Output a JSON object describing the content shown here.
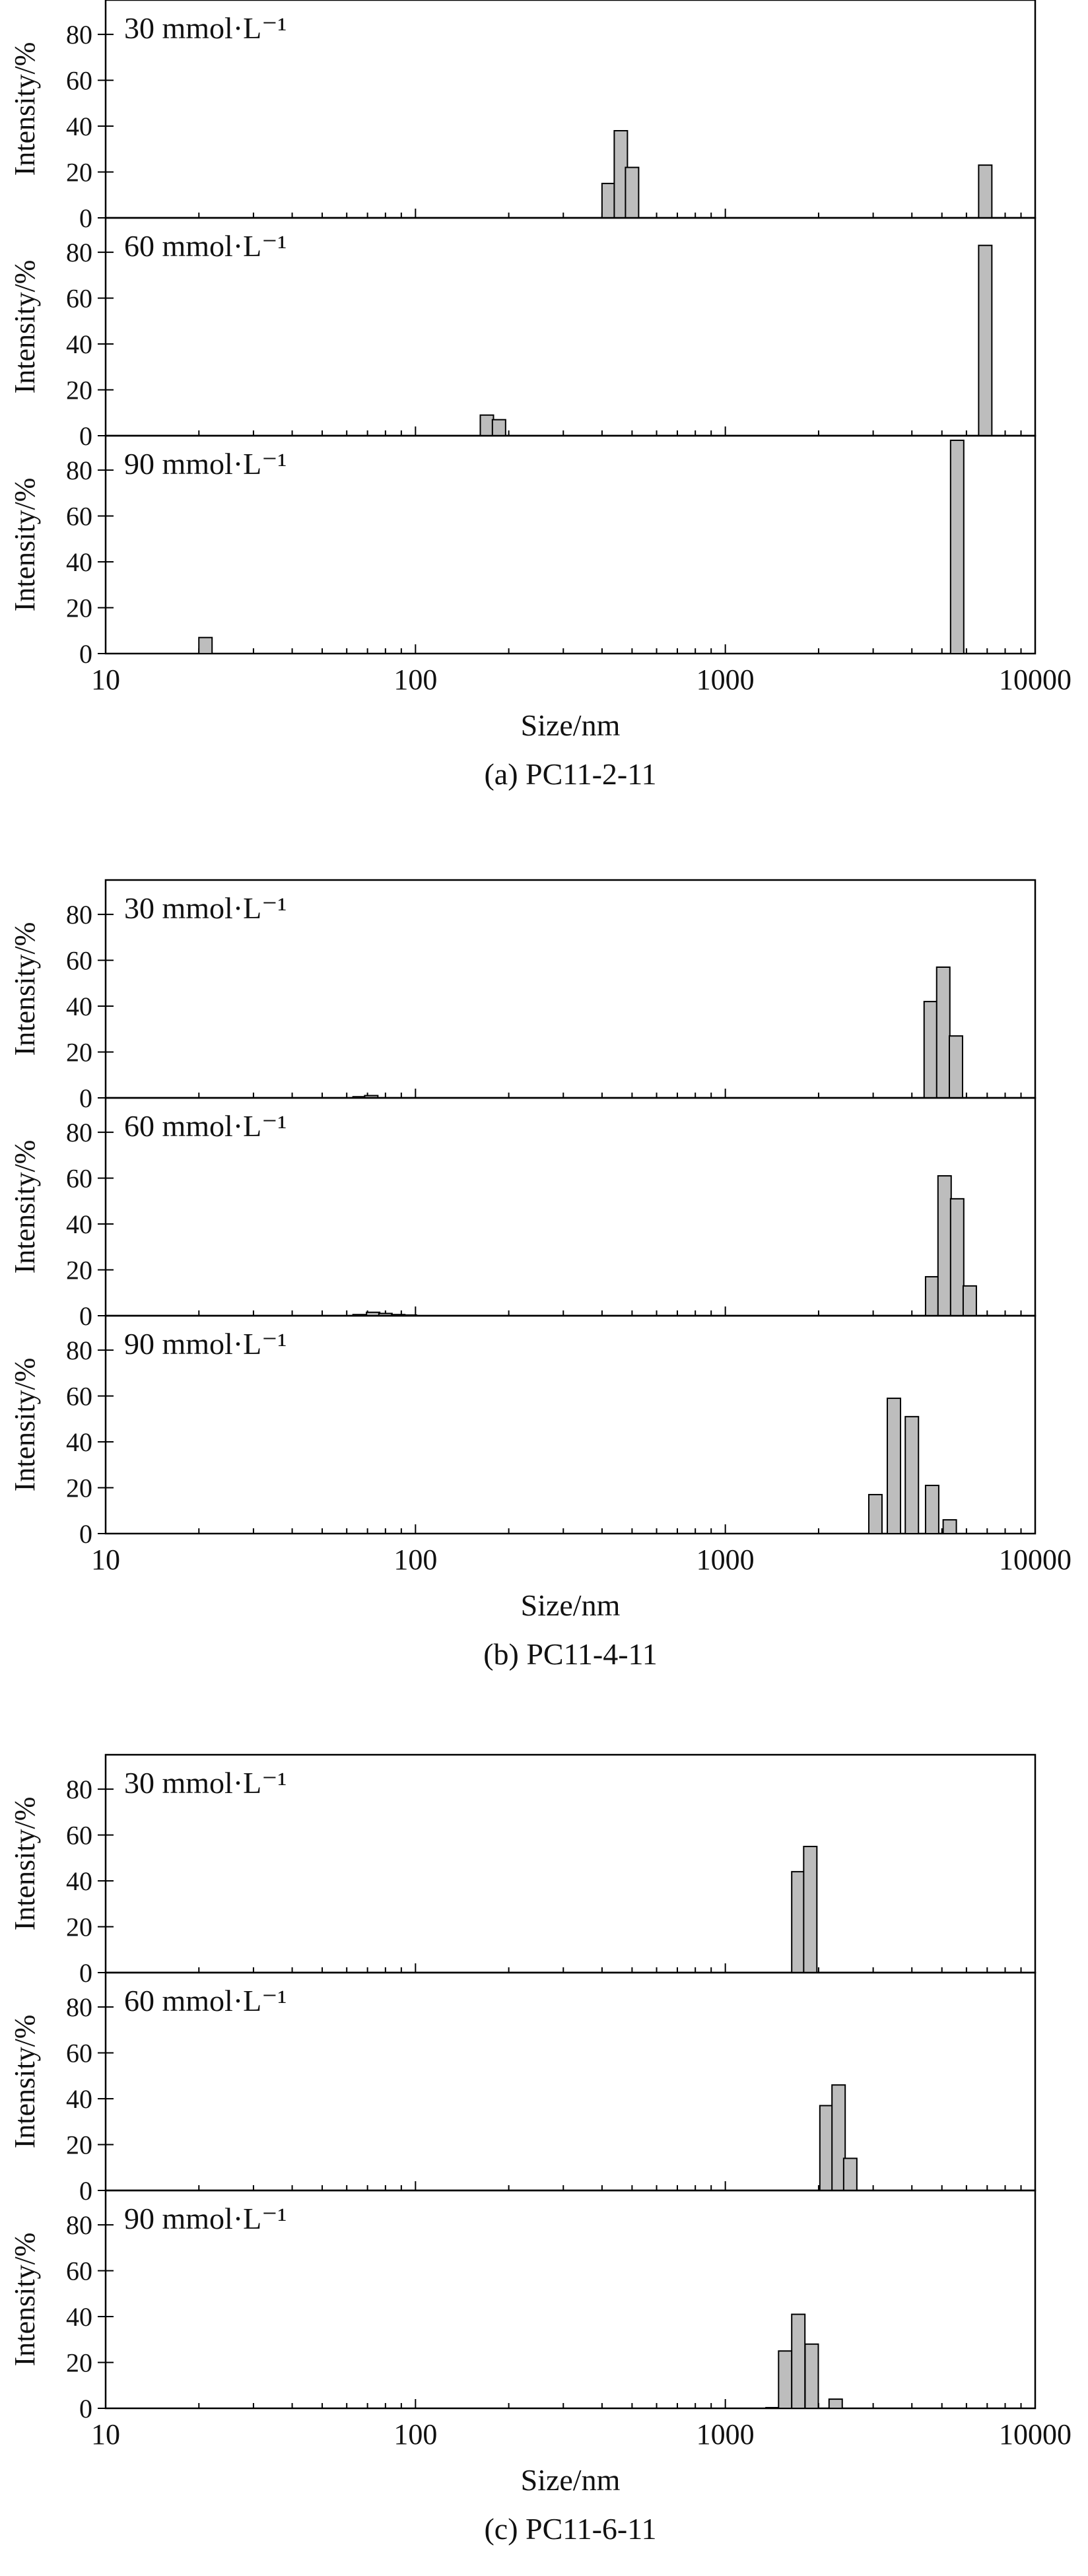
{
  "colors": {
    "bar_fill": "#bdbdbd",
    "bar_stroke": "#000000",
    "axis": "#000000",
    "background": "#ffffff"
  },
  "chart_data": [
    {
      "type": "bar",
      "caption": "(a) PC11-2-11",
      "xlabel": "Size/nm",
      "ylabel": "Intensity/%",
      "xscale": "log",
      "xlim": [
        10,
        10000
      ],
      "x_ticks": [
        "10",
        "100",
        "1000",
        "10000"
      ],
      "ylim": [
        0,
        95
      ],
      "y_ticks": [
        "0",
        "20",
        "40",
        "60",
        "80"
      ],
      "panels": [
        {
          "label": "30 mmol·L⁻¹",
          "bars": [
            {
              "x": 420,
              "y": 15
            },
            {
              "x": 460,
              "y": 38
            },
            {
              "x": 500,
              "y": 22
            },
            {
              "x": 6900,
              "y": 23
            }
          ]
        },
        {
          "label": "60 mmol·L⁻¹",
          "bars": [
            {
              "x": 170,
              "y": 9
            },
            {
              "x": 186,
              "y": 7
            },
            {
              "x": 6900,
              "y": 83
            }
          ]
        },
        {
          "label": "90 mmol·L⁻¹",
          "bars": [
            {
              "x": 21,
              "y": 7
            },
            {
              "x": 5600,
              "y": 93
            }
          ]
        }
      ]
    },
    {
      "type": "bar",
      "caption": "(b) PC11-4-11",
      "xlabel": "Size/nm",
      "ylabel": "Intensity/%",
      "xscale": "log",
      "xlim": [
        10,
        10000
      ],
      "x_ticks": [
        "10",
        "100",
        "1000",
        "10000"
      ],
      "ylim": [
        0,
        95
      ],
      "y_ticks": [
        "0",
        "20",
        "40",
        "60",
        "80"
      ],
      "panels": [
        {
          "label": "30 mmol·L⁻¹",
          "bars": [
            {
              "x": 66,
              "y": 0.5
            },
            {
              "x": 72,
              "y": 1
            },
            {
              "x": 4600,
              "y": 42
            },
            {
              "x": 5050,
              "y": 57
            },
            {
              "x": 5550,
              "y": 27
            }
          ]
        },
        {
          "label": "60 mmol·L⁻¹",
          "bars": [
            {
              "x": 66,
              "y": 0.5
            },
            {
              "x": 73,
              "y": 1.5
            },
            {
              "x": 80,
              "y": 1
            },
            {
              "x": 88,
              "y": 0.5
            },
            {
              "x": 96,
              "y": 0.3
            },
            {
              "x": 4650,
              "y": 17
            },
            {
              "x": 5100,
              "y": 61
            },
            {
              "x": 5600,
              "y": 51
            },
            {
              "x": 6150,
              "y": 13
            }
          ]
        },
        {
          "label": "90 mmol·L⁻¹",
          "bars": [
            {
              "x": 3050,
              "y": 17
            },
            {
              "x": 3500,
              "y": 59
            },
            {
              "x": 4000,
              "y": 51
            },
            {
              "x": 4650,
              "y": 21
            },
            {
              "x": 5300,
              "y": 6
            }
          ]
        }
      ]
    },
    {
      "type": "bar",
      "caption": "(c) PC11-6-11",
      "xlabel": "Size/nm",
      "ylabel": "Intensity/%",
      "xscale": "log",
      "xlim": [
        10,
        10000
      ],
      "x_ticks": [
        "10",
        "100",
        "1000",
        "10000"
      ],
      "ylim": [
        0,
        95
      ],
      "y_ticks": [
        "0",
        "20",
        "40",
        "60",
        "80"
      ],
      "panels": [
        {
          "label": "30 mmol·L⁻¹",
          "bars": [
            {
              "x": 1720,
              "y": 44
            },
            {
              "x": 1880,
              "y": 55
            }
          ]
        },
        {
          "label": "60 mmol·L⁻¹",
          "bars": [
            {
              "x": 2120,
              "y": 37
            },
            {
              "x": 2320,
              "y": 46
            },
            {
              "x": 2530,
              "y": 14
            }
          ]
        },
        {
          "label": "90 mmol·L⁻¹",
          "bars": [
            {
              "x": 1420,
              "y": 0.3
            },
            {
              "x": 1560,
              "y": 25
            },
            {
              "x": 1720,
              "y": 41
            },
            {
              "x": 1900,
              "y": 28
            },
            {
              "x": 2270,
              "y": 4
            }
          ]
        }
      ]
    }
  ]
}
